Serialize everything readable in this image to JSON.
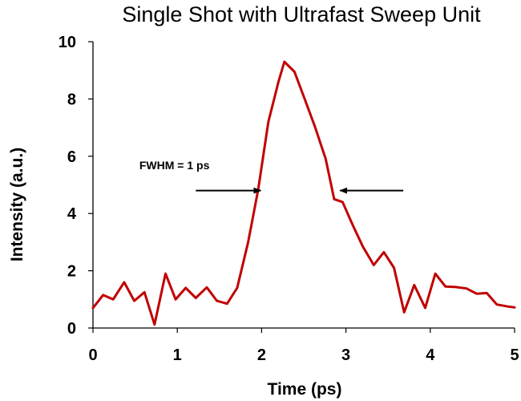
{
  "chart_data": {
    "type": "line",
    "title": "Single Shot with Ultrafast Sweep Unit",
    "xlabel": "Time (ps)",
    "ylabel": "Intensity (a.u.)",
    "xlim": [
      0,
      5
    ],
    "ylim": [
      0,
      10
    ],
    "xticks": [
      "0",
      "1",
      "2",
      "3",
      "4",
      "5"
    ],
    "yticks": [
      "0",
      "2",
      "4",
      "6",
      "8",
      "10"
    ],
    "grid": false,
    "legend": "none",
    "series": [
      {
        "color": "#c00000",
        "x": [
          0.0,
          0.12,
          0.24,
          0.37,
          0.49,
          0.61,
          0.73,
          0.86,
          0.98,
          1.1,
          1.22,
          1.35,
          1.47,
          1.59,
          1.71,
          1.84,
          1.96,
          2.08,
          2.2,
          2.27,
          2.39,
          2.51,
          2.63,
          2.76,
          2.86,
          2.96,
          3.08,
          3.2,
          3.33,
          3.45,
          3.57,
          3.69,
          3.81,
          3.94,
          4.06,
          4.18,
          4.3,
          4.43,
          4.55,
          4.67,
          4.79,
          4.92,
          5.0
        ],
        "values": [
          0.7,
          1.15,
          1.0,
          1.6,
          0.95,
          1.25,
          0.12,
          1.9,
          1.0,
          1.4,
          1.05,
          1.42,
          0.95,
          0.85,
          1.4,
          3.0,
          4.85,
          7.2,
          8.6,
          9.3,
          8.95,
          8.0,
          7.05,
          5.9,
          4.5,
          4.4,
          3.6,
          2.85,
          2.2,
          2.65,
          2.1,
          0.55,
          1.5,
          0.7,
          1.9,
          1.45,
          1.43,
          1.38,
          1.2,
          1.22,
          0.82,
          0.75,
          0.72
        ]
      }
    ],
    "annotations": [
      {
        "text": "FWHM = 1 ps",
        "at": [
          0.55,
          5.55
        ]
      },
      {
        "arrow_from": [
          1.22,
          4.8
        ],
        "arrow_to": [
          1.99,
          4.8
        ]
      },
      {
        "arrow_from": [
          3.68,
          4.8
        ],
        "arrow_to": [
          2.93,
          4.8
        ]
      }
    ]
  }
}
